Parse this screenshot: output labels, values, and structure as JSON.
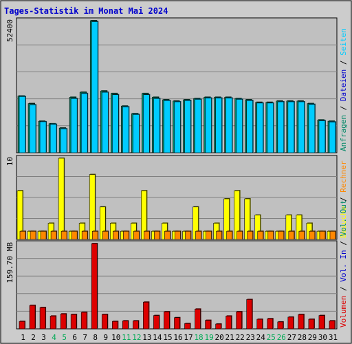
{
  "title": "Tages-Statistik im Monat Mai 2024",
  "colors": {
    "background": "#cccccc",
    "plot_bg": "#c0c0c0",
    "grid": "#808080",
    "title": "#0000cc",
    "hits": "#008866",
    "files": "#0000cc",
    "pages": "#00ccff",
    "visits": "#ffff00",
    "sites": "#ff8800",
    "kbytes": "#dd0000",
    "weekend_label": "#00aa55"
  },
  "chart_data": [
    {
      "type": "bar",
      "panel": "top",
      "y_max_label": "52400",
      "ylim": [
        0,
        52400
      ],
      "legend": [
        {
          "key": "anfragen",
          "label": "Anfragen",
          "color": "#008866"
        },
        {
          "key": "sep1",
          "label": " / ",
          "color": "#000000"
        },
        {
          "key": "dateien",
          "label": "Dateien",
          "color": "#0000cc"
        },
        {
          "key": "sep2",
          "label": " / ",
          "color": "#000000"
        },
        {
          "key": "seiten",
          "label": "Seiten",
          "color": "#00ccff"
        }
      ],
      "series": [
        {
          "name": "Anfragen",
          "color": "#008866",
          "values": [
            22500,
            19500,
            12500,
            11500,
            9800,
            22000,
            24000,
            52400,
            24500,
            23500,
            18500,
            15500,
            23500,
            22000,
            21000,
            20500,
            21000,
            21500,
            22000,
            22000,
            22000,
            21500,
            21000,
            20000,
            20000,
            20500,
            20500,
            20500,
            19500,
            13000,
            12500
          ]
        },
        {
          "name": "Seiten",
          "color": "#00ccff",
          "values": [
            22300,
            19000,
            12300,
            11300,
            9500,
            21500,
            23500,
            52000,
            24000,
            23000,
            18200,
            15200,
            23000,
            21500,
            20700,
            20200,
            20700,
            21200,
            21700,
            21700,
            21700,
            21200,
            20700,
            19700,
            19700,
            20200,
            20200,
            20200,
            19200,
            12700,
            12200
          ]
        }
      ]
    },
    {
      "type": "bar",
      "panel": "middle",
      "y_max_label": "10",
      "ylim": [
        0,
        10
      ],
      "legend": [
        {
          "key": "besuche",
          "label": "Besuche",
          "color": "#ffff00"
        },
        {
          "key": "sep1",
          "label": " / ",
          "color": "#000000"
        },
        {
          "key": "rechner",
          "label": "Rechner",
          "color": "#ff8800"
        }
      ],
      "series": [
        {
          "name": "Besuche",
          "color": "#ffff00",
          "values": [
            6,
            1,
            1,
            2,
            10,
            1,
            2,
            8,
            4,
            2,
            1,
            2,
            6,
            1,
            2,
            1,
            1,
            4,
            1,
            2,
            5,
            6,
            5,
            3,
            1,
            1,
            3,
            3,
            2,
            1,
            1
          ]
        },
        {
          "name": "Rechner",
          "color": "#ff8800",
          "values": [
            1,
            1,
            1,
            1,
            1,
            1,
            1,
            1,
            1,
            1,
            1,
            1,
            1,
            1,
            1,
            1,
            1,
            1,
            1,
            1,
            1,
            1,
            1,
            1,
            1,
            1,
            1,
            1,
            1,
            1,
            1
          ]
        }
      ]
    },
    {
      "type": "bar",
      "panel": "bottom",
      "y_max_label": "159.70 MB",
      "ylim": [
        0,
        159.7
      ],
      "legend": [
        {
          "key": "volumen",
          "label": "Volumen",
          "color": "#dd0000"
        },
        {
          "key": "sep1",
          "label": " / ",
          "color": "#000000"
        },
        {
          "key": "volin",
          "label": "Vol. In",
          "color": "#0000cc"
        },
        {
          "key": "sep2",
          "label": " / ",
          "color": "#000000"
        },
        {
          "key": "volout",
          "label": "Vol. Out",
          "color": "#008866"
        }
      ],
      "series": [
        {
          "name": "Volumen",
          "color": "#dd0000",
          "values": [
            14,
            44,
            40,
            24,
            28,
            27,
            31,
            159.7,
            27,
            14,
            15,
            15,
            50,
            25,
            32,
            21,
            10,
            37,
            16,
            9,
            24,
            32,
            55,
            18,
            19,
            13,
            22,
            27,
            18,
            25,
            15
          ]
        }
      ]
    }
  ],
  "x_labels": [
    "1",
    "2",
    "3",
    "4",
    "5",
    "6",
    "7",
    "8",
    "9",
    "10",
    "11",
    "12",
    "13",
    "14",
    "15",
    "16",
    "17",
    "18",
    "19",
    "20",
    "21",
    "22",
    "23",
    "24",
    "25",
    "26",
    "27",
    "28",
    "29",
    "30",
    "31"
  ],
  "weekend_days": [
    4,
    5,
    11,
    12,
    18,
    19,
    25,
    26
  ]
}
